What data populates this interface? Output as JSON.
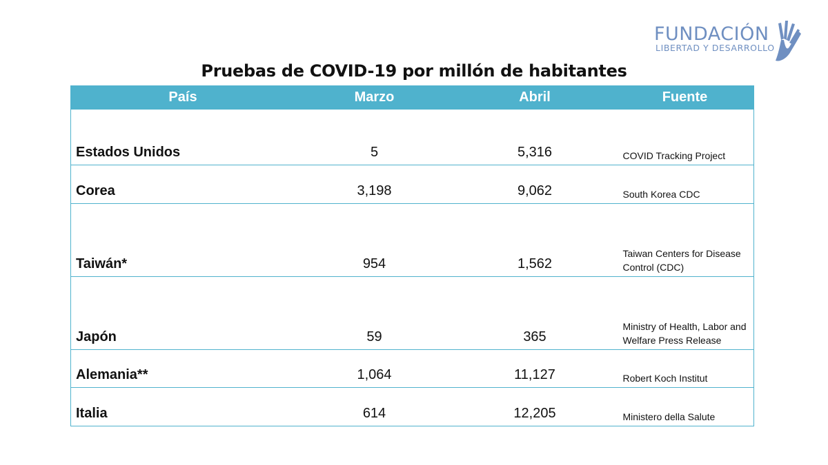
{
  "logo": {
    "main": "FUNDACIÓN",
    "sub": "LIBERTAD Y DESARROLLO"
  },
  "chart_data": {
    "type": "table",
    "title": "Pruebas de COVID-19 por millón de habitantes",
    "columns": [
      "País",
      "Marzo",
      "Abril",
      "Fuente"
    ],
    "rows": [
      {
        "pais": "Estados Unidos",
        "marzo": "5",
        "abril": "5,316",
        "fuente": "COVID Tracking Project"
      },
      {
        "pais": "Corea",
        "marzo": "3,198",
        "abril": "9,062",
        "fuente": "South Korea CDC"
      },
      {
        "pais": "Taiwán*",
        "marzo": "954",
        "abril": "1,562",
        "fuente": "Taiwan Centers for Disease Control (CDC)"
      },
      {
        "pais": "Japón",
        "marzo": "59",
        "abril": "365",
        "fuente": "Ministry of Health, Labor and Welfare Press Release"
      },
      {
        "pais": "Alemania**",
        "marzo": "1,064",
        "abril": "11,127",
        "fuente": "Robert Koch Institut"
      },
      {
        "pais": "Italia",
        "marzo": "614",
        "abril": "12,205",
        "fuente": "Ministero della Salute"
      }
    ]
  },
  "colors": {
    "header": "#4fb2cd",
    "logo": "#6f8fc1"
  }
}
